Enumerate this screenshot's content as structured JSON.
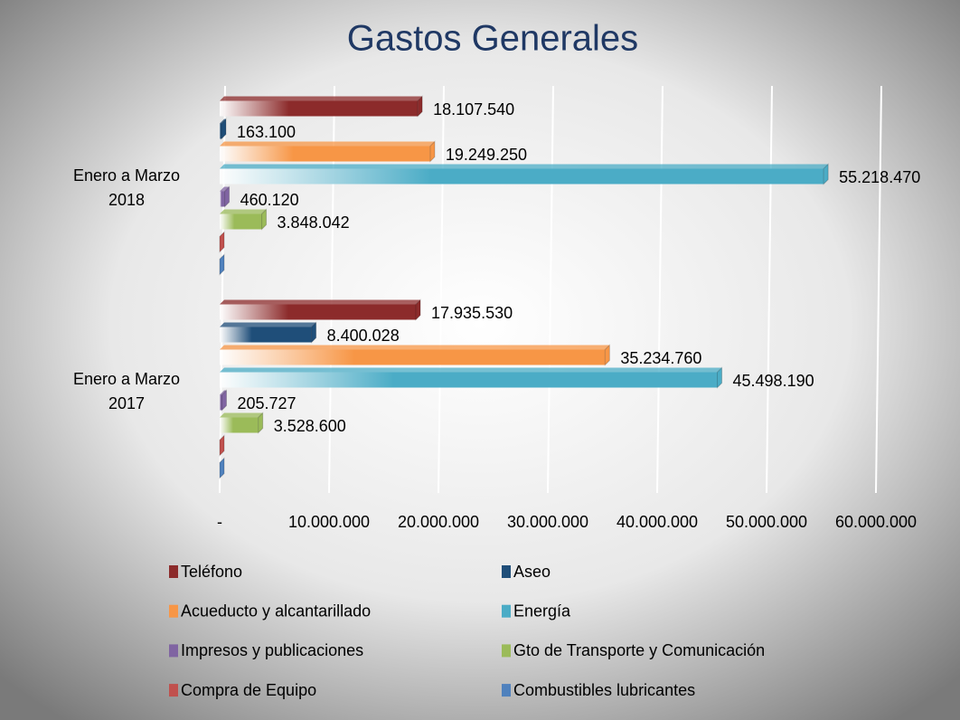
{
  "chart_data": {
    "type": "hbar",
    "title": "Gastos Generales",
    "categories": [
      "Enero a Marzo 2018",
      "Enero a Marzo 2017"
    ],
    "series": [
      {
        "name": "Teléfono",
        "color": "#8c2b2b",
        "values": [
          18107540,
          17935530
        ],
        "value_labels": [
          "18.107.540",
          "17.935.530"
        ]
      },
      {
        "name": "Aseo",
        "color": "#1f4e79",
        "values": [
          163100,
          8400028
        ],
        "value_labels": [
          "163.100",
          "8.400.028"
        ]
      },
      {
        "name": "Acueducto y alcantarillado",
        "color": "#f79646",
        "values": [
          19249250,
          35234760
        ],
        "value_labels": [
          "19.249.250",
          "35.234.760"
        ]
      },
      {
        "name": "Energía",
        "color": "#4bacc6",
        "values": [
          55218470,
          45498190
        ],
        "value_labels": [
          "55.218.470",
          "45.498.190"
        ]
      },
      {
        "name": "Impresos y publicaciones",
        "color": "#8064a2",
        "values": [
          460120,
          205727
        ],
        "value_labels": [
          "460.120",
          "205.727"
        ]
      },
      {
        "name": "Gto de Transporte y Comunicación",
        "color": "#9bbb59",
        "values": [
          3848042,
          3528600
        ],
        "value_labels": [
          "3.848.042",
          "3.528.600"
        ]
      },
      {
        "name": "Compra de Equipo",
        "color": "#c0504d",
        "values": [
          0,
          0
        ],
        "value_labels": [
          null,
          null
        ]
      },
      {
        "name": "Combustibles lubricantes",
        "color": "#4f81bd",
        "values": [
          0,
          0
        ],
        "value_labels": [
          null,
          null
        ]
      }
    ],
    "xlim": [
      0,
      60000000
    ],
    "xticks": [
      {
        "value": 0,
        "label": "-"
      },
      {
        "value": 10000000,
        "label": "10.000.000"
      },
      {
        "value": 20000000,
        "label": "20.000.000"
      },
      {
        "value": 30000000,
        "label": "30.000.000"
      },
      {
        "value": 40000000,
        "label": "40.000.000"
      },
      {
        "value": 50000000,
        "label": "50.000.000"
      },
      {
        "value": 60000000,
        "label": "60.000.000"
      }
    ],
    "grid": true
  }
}
